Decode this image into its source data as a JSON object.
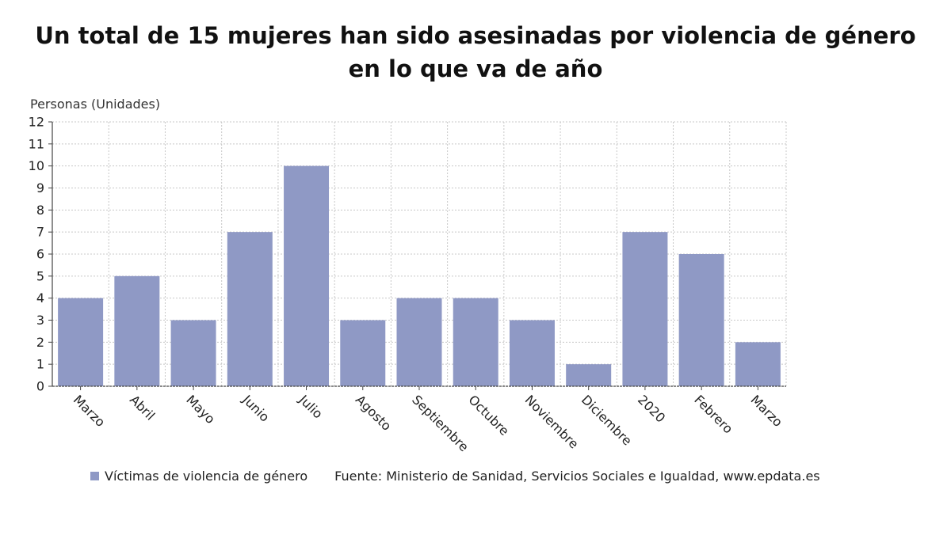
{
  "title_line1": "Un total de 15 mujeres han sido asesinadas por violencia de género",
  "title_line2": "en lo que va de año",
  "source": "Fuente: Ministerio de Sanidad, Servicios Sociales e Igualdad, www.epdata.es",
  "colors": {
    "bar": "#8f99c5",
    "grid": "#c8c8c8",
    "axis": "#444444"
  },
  "chart_data": {
    "type": "bar",
    "ylabel": "Personas (Unidades)",
    "xlabel": "",
    "categories": [
      "Marzo",
      "Abril",
      "Mayo",
      "Junio",
      "Julio",
      "Agosto",
      "Septiembre",
      "Octubre",
      "Noviembre",
      "Diciembre",
      "2020",
      "Febrero",
      "Marzo"
    ],
    "series": [
      {
        "name": "Víctimas de violencia de género",
        "values": [
          4,
          5,
          3,
          7,
          10,
          3,
          4,
          4,
          3,
          1,
          7,
          6,
          2
        ]
      }
    ],
    "ylim": [
      0,
      12
    ],
    "yticks": [
      0,
      1,
      2,
      3,
      4,
      5,
      6,
      7,
      8,
      9,
      10,
      11,
      12
    ],
    "grid": true,
    "legend": "bottom"
  }
}
